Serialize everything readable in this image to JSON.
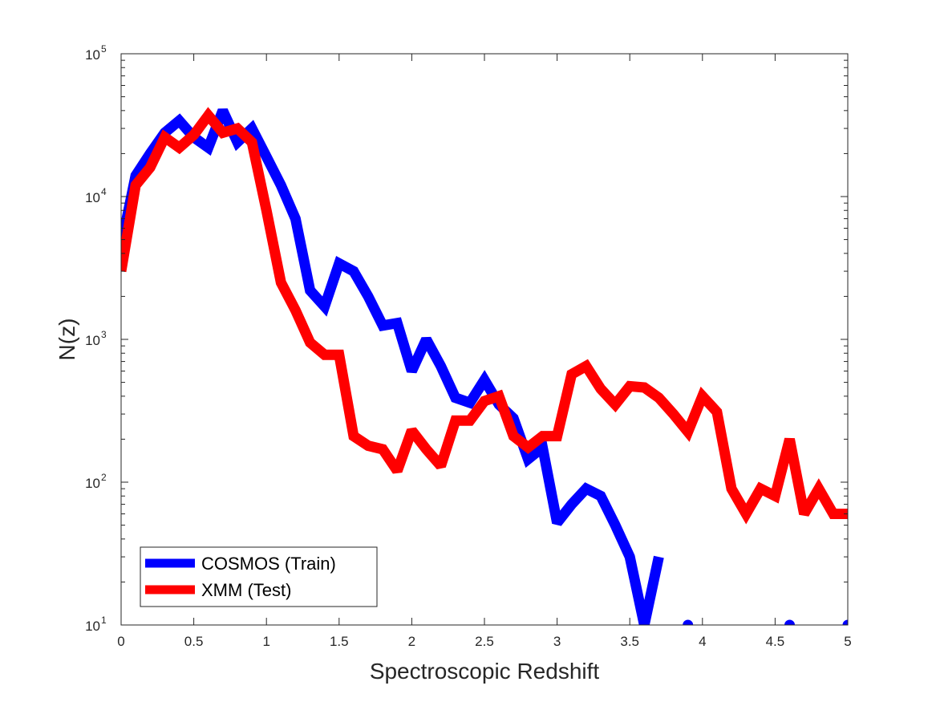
{
  "chart_data": {
    "type": "line",
    "title": "",
    "xlabel": "Spectroscopic Redshift",
    "ylabel": "N(z)",
    "xlim": [
      0,
      5
    ],
    "ylim": [
      10,
      100000
    ],
    "yscale": "log",
    "grid": false,
    "legend_position": "bottom-left",
    "x_ticks": [
      0,
      0.5,
      1,
      1.5,
      2,
      2.5,
      3,
      3.5,
      4,
      4.5,
      5
    ],
    "x_tick_labels": [
      "0",
      "0.5",
      "1",
      "1.5",
      "2",
      "2.5",
      "3",
      "3.5",
      "4",
      "4.5",
      "5"
    ],
    "y_ticks": [
      {
        "value": 10,
        "base": "10",
        "exp": "1"
      },
      {
        "value": 100,
        "base": "10",
        "exp": "2"
      },
      {
        "value": 1000,
        "base": "10",
        "exp": "3"
      },
      {
        "value": 10000,
        "base": "10",
        "exp": "4"
      },
      {
        "value": 100000,
        "base": "10",
        "exp": "5"
      }
    ],
    "series": [
      {
        "name": "COSMOS (Train)",
        "color": "#0000ff",
        "x": [
          0,
          0.1,
          0.2,
          0.3,
          0.4,
          0.5,
          0.6,
          0.7,
          0.8,
          0.9,
          1.0,
          1.1,
          1.2,
          1.3,
          1.4,
          1.5,
          1.6,
          1.7,
          1.8,
          1.9,
          2.0,
          2.1,
          2.2,
          2.3,
          2.4,
          2.5,
          2.6,
          2.7,
          2.8,
          2.9,
          3.0,
          3.1,
          3.2,
          3.3,
          3.4,
          3.5,
          3.6,
          3.7,
          3.8,
          3.9,
          4.0,
          4.1,
          4.2,
          4.3,
          4.4,
          4.5,
          4.6,
          4.7,
          4.8,
          4.9,
          5.0
        ],
        "values": [
          4500,
          14000,
          20000,
          28000,
          34000,
          26000,
          22000,
          40000,
          24000,
          30000,
          19000,
          12000,
          7000,
          2200,
          1700,
          3400,
          3000,
          2000,
          1250,
          1300,
          600,
          1000,
          650,
          390,
          360,
          520,
          350,
          280,
          145,
          175,
          52,
          70,
          90,
          80,
          50,
          30,
          10,
          30,
          0,
          10,
          0,
          0,
          0,
          0,
          0,
          0,
          10,
          0,
          0,
          0,
          10
        ]
      },
      {
        "name": "XMM (Test)",
        "color": "#ff0000",
        "x": [
          0,
          0.1,
          0.2,
          0.3,
          0.4,
          0.5,
          0.6,
          0.7,
          0.8,
          0.9,
          1.0,
          1.1,
          1.2,
          1.3,
          1.4,
          1.5,
          1.6,
          1.7,
          1.8,
          1.9,
          2.0,
          2.1,
          2.2,
          2.3,
          2.4,
          2.5,
          2.6,
          2.7,
          2.8,
          2.9,
          3.0,
          3.1,
          3.2,
          3.3,
          3.4,
          3.5,
          3.6,
          3.7,
          3.8,
          3.9,
          4.0,
          4.1,
          4.2,
          4.3,
          4.4,
          4.5,
          4.6,
          4.7,
          4.8,
          4.9,
          5.0
        ],
        "values": [
          3000,
          12000,
          16000,
          26000,
          22000,
          27000,
          37000,
          28000,
          30000,
          24000,
          8000,
          2500,
          1600,
          950,
          780,
          780,
          210,
          180,
          170,
          120,
          230,
          170,
          130,
          270,
          270,
          370,
          400,
          210,
          175,
          210,
          210,
          570,
          650,
          450,
          350,
          470,
          460,
          390,
          300,
          225,
          400,
          310,
          90,
          60,
          90,
          80,
          200,
          60,
          90,
          60,
          60
        ]
      }
    ]
  }
}
